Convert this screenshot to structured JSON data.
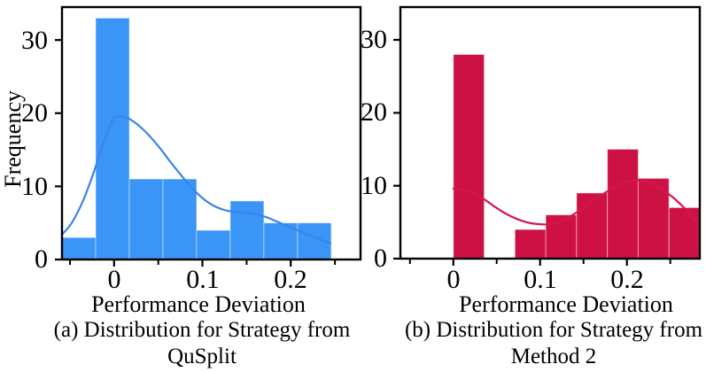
{
  "background": "#ffffff",
  "axis_color": "#000000",
  "text_color": "#000000",
  "chart_data": [
    {
      "panel": "a",
      "type": "bar",
      "subtype": "histogram_with_kde",
      "title": "",
      "xlabel": "Performance Deviation",
      "ylabel": "Frequency",
      "caption": [
        "(a) Distribution for Strategy from",
        "QuSplit"
      ],
      "bar_color": "#3b95f6",
      "kde_color": "#3a85e8",
      "bin_start": -0.059,
      "bin_width": 0.0381,
      "frequencies": [
        3,
        33,
        11,
        11,
        4,
        8,
        5,
        5
      ],
      "kde_points": [
        [
          -0.059,
          3.4
        ],
        [
          -0.048,
          5.0
        ],
        [
          -0.036,
          7.8
        ],
        [
          -0.024,
          11.6
        ],
        [
          -0.012,
          16.0
        ],
        [
          -0.002,
          18.9
        ],
        [
          0.006,
          19.6
        ],
        [
          0.016,
          19.3
        ],
        [
          0.028,
          18.3
        ],
        [
          0.04,
          16.9
        ],
        [
          0.052,
          15.2
        ],
        [
          0.064,
          13.3
        ],
        [
          0.076,
          11.5
        ],
        [
          0.088,
          9.8
        ],
        [
          0.1,
          8.4
        ],
        [
          0.112,
          7.4
        ],
        [
          0.124,
          6.8
        ],
        [
          0.136,
          6.5
        ],
        [
          0.148,
          6.4
        ],
        [
          0.16,
          6.2
        ],
        [
          0.172,
          5.8
        ],
        [
          0.184,
          5.2
        ],
        [
          0.2,
          4.4
        ],
        [
          0.216,
          3.6
        ],
        [
          0.232,
          2.8
        ],
        [
          0.245,
          2.2
        ]
      ],
      "xlim": [
        -0.059,
        0.279
      ],
      "ylim": [
        0,
        34.5
      ],
      "grid": false,
      "legend": false,
      "xticks_major": [
        0,
        0.1,
        0.2
      ],
      "xtick_labels": [
        "0",
        "0.1",
        "0.2"
      ],
      "xticks_minor": [
        -0.05,
        0.05,
        0.15,
        0.25
      ],
      "yticks": [
        0,
        10,
        20,
        30
      ],
      "ytick_labels": [
        "0",
        "10",
        "20",
        "30"
      ]
    },
    {
      "panel": "b",
      "type": "bar",
      "subtype": "histogram_with_kde",
      "title": "",
      "xlabel": "Performance Deviation",
      "ylabel": "",
      "caption": [
        "(b) Distribution for Strategy from",
        "Method 2"
      ],
      "bar_color": "#ce1144",
      "kde_color": "#d6164b",
      "bin_start": 0.0,
      "bin_width": 0.0355,
      "frequencies": [
        28,
        0,
        4,
        6,
        9,
        15,
        11,
        7
      ],
      "kde_points": [
        [
          0.0,
          9.6
        ],
        [
          0.012,
          9.4
        ],
        [
          0.024,
          8.9
        ],
        [
          0.036,
          8.1
        ],
        [
          0.048,
          7.1
        ],
        [
          0.06,
          6.2
        ],
        [
          0.072,
          5.5
        ],
        [
          0.084,
          5.0
        ],
        [
          0.096,
          4.75
        ],
        [
          0.108,
          4.7
        ],
        [
          0.12,
          5.0
        ],
        [
          0.132,
          5.6
        ],
        [
          0.144,
          6.5
        ],
        [
          0.156,
          7.5
        ],
        [
          0.168,
          8.5
        ],
        [
          0.18,
          9.4
        ],
        [
          0.192,
          10.2
        ],
        [
          0.204,
          10.65
        ],
        [
          0.216,
          10.7
        ],
        [
          0.228,
          10.3
        ],
        [
          0.24,
          9.5
        ],
        [
          0.252,
          8.5
        ],
        [
          0.264,
          7.2
        ],
        [
          0.274,
          5.9
        ],
        [
          0.284,
          4.6
        ]
      ],
      "xlim": [
        -0.061,
        0.284
      ],
      "ylim": [
        0,
        34.5
      ],
      "grid": false,
      "legend": false,
      "xticks_major": [
        0,
        0.1,
        0.2
      ],
      "xtick_labels": [
        "0",
        "0.1",
        "0.2"
      ],
      "xticks_minor": [
        -0.05,
        0.05,
        0.15,
        0.25
      ],
      "yticks": [
        0,
        10,
        20,
        30
      ],
      "ytick_labels": [
        "0",
        "10",
        "20",
        "30"
      ]
    }
  ]
}
